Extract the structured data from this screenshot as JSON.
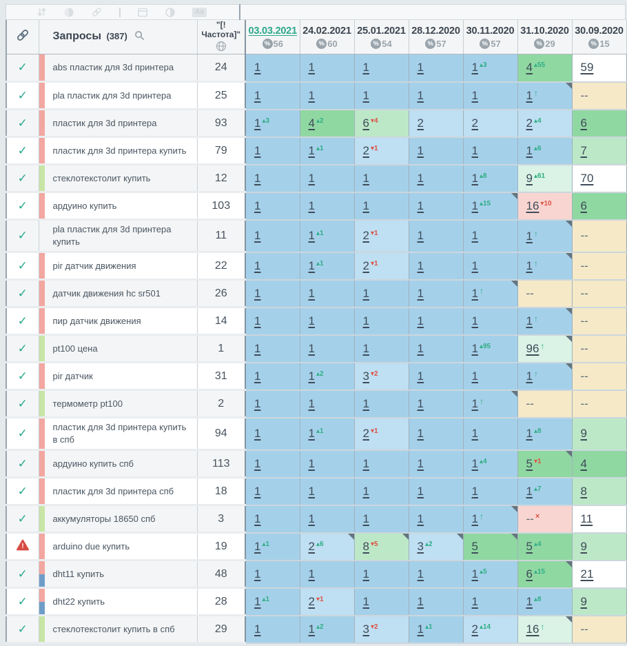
{
  "toolbar": {
    "icons": [
      "sort",
      "balance",
      "link",
      "divider",
      "card",
      "contrast",
      "text-style"
    ]
  },
  "header": {
    "queries_label": "Запросы",
    "queries_count": "(387)",
    "frequency_label": "\"[!Частота]\"",
    "dates": [
      {
        "label": "03.03.2021",
        "percent": "56",
        "active": true
      },
      {
        "label": "24.02.2021",
        "percent": "60"
      },
      {
        "label": "25.01.2021",
        "percent": "54"
      },
      {
        "label": "28.12.2020",
        "percent": "57"
      },
      {
        "label": "30.11.2020",
        "percent": "57"
      },
      {
        "label": "31.10.2020",
        "percent": "29"
      },
      {
        "label": "30.09.2020",
        "percent": "15"
      }
    ]
  },
  "colors": {
    "accent_teal": "#2aa98b",
    "up_green": "#2fae85",
    "down_red": "#dd5246",
    "pos1_blue": "#a5d0ea",
    "pos2_3_blue": "#bfdff2",
    "pos4_6_green": "#90d8a2",
    "pos7_10_green": "#bce8c7",
    "new_entry_green": "#daf3e6",
    "not_ranked_tan": "#f5e9c8",
    "dropped_pink": "#f9d5d1",
    "tag_red": "#f2a7a0",
    "tag_green": "#c8e5a5",
    "tag_blue": "#6f9dc9"
  },
  "rows": [
    {
      "status": "ok",
      "tags": [
        "red"
      ],
      "query": "abs пластик для 3d принтера",
      "frequency": "24",
      "cells": [
        {
          "v": "1"
        },
        {
          "v": "1"
        },
        {
          "v": "1"
        },
        {
          "v": "1"
        },
        {
          "v": "1",
          "dir": "up",
          "chg": "3"
        },
        {
          "v": "4",
          "bg": "green1",
          "dir": "up",
          "chg": "55"
        },
        {
          "v": "59",
          "bg": "white"
        }
      ]
    },
    {
      "status": "ok",
      "tags": [
        "red"
      ],
      "query": "pla пластик для 3d принтера",
      "frequency": "25",
      "cells": [
        {
          "v": "1"
        },
        {
          "v": "1"
        },
        {
          "v": "1"
        },
        {
          "v": "1"
        },
        {
          "v": "1"
        },
        {
          "v": "1",
          "dir": "new",
          "corner": true
        },
        {
          "v": "--",
          "bg": "tan"
        }
      ]
    },
    {
      "status": "ok",
      "tags": [
        "red"
      ],
      "query": "пластик для 3d принтера",
      "frequency": "93",
      "cells": [
        {
          "v": "1",
          "dir": "up",
          "chg": "3"
        },
        {
          "v": "4",
          "bg": "green1",
          "dir": "up",
          "chg": "2"
        },
        {
          "v": "6",
          "bg": "green2",
          "dir": "dn",
          "chg": "4"
        },
        {
          "v": "2",
          "bg": "blue2"
        },
        {
          "v": "2",
          "bg": "blue2"
        },
        {
          "v": "2",
          "bg": "blue2",
          "dir": "up",
          "chg": "4"
        },
        {
          "v": "6",
          "bg": "green1"
        }
      ]
    },
    {
      "status": "ok",
      "tags": [
        "red"
      ],
      "query": "пластик для 3d принтера купить",
      "frequency": "79",
      "cells": [
        {
          "v": "1"
        },
        {
          "v": "1",
          "dir": "up",
          "chg": "1"
        },
        {
          "v": "2",
          "bg": "blue2",
          "dir": "dn",
          "chg": "1"
        },
        {
          "v": "1"
        },
        {
          "v": "1"
        },
        {
          "v": "1",
          "dir": "up",
          "chg": "6"
        },
        {
          "v": "7",
          "bg": "green2"
        }
      ]
    },
    {
      "status": "ok",
      "tags": [
        "green"
      ],
      "query": "стеклотекстолит купить",
      "frequency": "12",
      "cells": [
        {
          "v": "1"
        },
        {
          "v": "1"
        },
        {
          "v": "1"
        },
        {
          "v": "1"
        },
        {
          "v": "1",
          "dir": "up",
          "chg": "8"
        },
        {
          "v": "9",
          "bg": "green3",
          "dir": "up",
          "chg": "61"
        },
        {
          "v": "70",
          "bg": "white"
        }
      ]
    },
    {
      "status": "ok",
      "tags": [
        "red"
      ],
      "query": "ардуино купить",
      "frequency": "103",
      "cells": [
        {
          "v": "1"
        },
        {
          "v": "1"
        },
        {
          "v": "1"
        },
        {
          "v": "1"
        },
        {
          "v": "1",
          "dir": "up",
          "chg": "15",
          "corner": true
        },
        {
          "v": "16",
          "bg": "pink",
          "dir": "dn",
          "chg": "10"
        },
        {
          "v": "6",
          "bg": "green1"
        }
      ]
    },
    {
      "status": "ok",
      "tags": [],
      "query": "pla пластик для 3d принтера купить",
      "frequency": "11",
      "cells": [
        {
          "v": "1"
        },
        {
          "v": "1",
          "dir": "up",
          "chg": "1"
        },
        {
          "v": "2",
          "bg": "blue2",
          "dir": "dn",
          "chg": "1"
        },
        {
          "v": "1"
        },
        {
          "v": "1"
        },
        {
          "v": "1",
          "dir": "new",
          "corner": true
        },
        {
          "v": "--",
          "bg": "tan"
        }
      ]
    },
    {
      "status": "ok",
      "tags": [
        "red"
      ],
      "query": "pir датчик движения",
      "frequency": "22",
      "cells": [
        {
          "v": "1"
        },
        {
          "v": "1",
          "dir": "up",
          "chg": "1"
        },
        {
          "v": "2",
          "bg": "blue2",
          "dir": "dn",
          "chg": "1"
        },
        {
          "v": "1"
        },
        {
          "v": "1"
        },
        {
          "v": "1",
          "dir": "new",
          "corner": true
        },
        {
          "v": "--",
          "bg": "tan"
        }
      ]
    },
    {
      "status": "ok",
      "tags": [
        "red"
      ],
      "query": "датчик движения hc sr501",
      "frequency": "26",
      "cells": [
        {
          "v": "1"
        },
        {
          "v": "1"
        },
        {
          "v": "1"
        },
        {
          "v": "1"
        },
        {
          "v": "1",
          "dir": "new",
          "corner": true
        },
        {
          "v": "--",
          "bg": "tan"
        },
        {
          "v": "--",
          "bg": "tan"
        }
      ]
    },
    {
      "status": "ok",
      "tags": [
        "red"
      ],
      "query": "пир датчик движения",
      "frequency": "14",
      "cells": [
        {
          "v": "1"
        },
        {
          "v": "1"
        },
        {
          "v": "1"
        },
        {
          "v": "1"
        },
        {
          "v": "1"
        },
        {
          "v": "1",
          "dir": "new",
          "corner": true
        },
        {
          "v": "--",
          "bg": "tan"
        }
      ]
    },
    {
      "status": "ok",
      "tags": [
        "green"
      ],
      "query": "pt100 цена",
      "frequency": "1",
      "cells": [
        {
          "v": "1"
        },
        {
          "v": "1"
        },
        {
          "v": "1"
        },
        {
          "v": "1"
        },
        {
          "v": "1",
          "dir": "up",
          "chg": "95"
        },
        {
          "v": "96",
          "bg": "green3",
          "dir": "new",
          "corner": true
        },
        {
          "v": "--",
          "bg": "tan"
        }
      ]
    },
    {
      "status": "ok",
      "tags": [
        "red"
      ],
      "query": "pir датчик",
      "frequency": "31",
      "cells": [
        {
          "v": "1"
        },
        {
          "v": "1",
          "dir": "up",
          "chg": "2"
        },
        {
          "v": "3",
          "bg": "blue2",
          "dir": "dn",
          "chg": "2"
        },
        {
          "v": "1"
        },
        {
          "v": "1"
        },
        {
          "v": "1",
          "dir": "new",
          "corner": true
        },
        {
          "v": "--",
          "bg": "tan"
        }
      ]
    },
    {
      "status": "ok",
      "tags": [
        "green"
      ],
      "query": "термометр pt100",
      "frequency": "2",
      "cells": [
        {
          "v": "1"
        },
        {
          "v": "1"
        },
        {
          "v": "1"
        },
        {
          "v": "1"
        },
        {
          "v": "1",
          "dir": "new",
          "corner": true
        },
        {
          "v": "--",
          "bg": "tan"
        },
        {
          "v": "--",
          "bg": "tan"
        }
      ]
    },
    {
      "status": "ok",
      "tags": [
        "red"
      ],
      "query": "пластик для 3d принтера купить в спб",
      "frequency": "94",
      "cells": [
        {
          "v": "1"
        },
        {
          "v": "1",
          "dir": "up",
          "chg": "1"
        },
        {
          "v": "2",
          "bg": "blue2",
          "dir": "dn",
          "chg": "1"
        },
        {
          "v": "1"
        },
        {
          "v": "1"
        },
        {
          "v": "1",
          "dir": "up",
          "chg": "8"
        },
        {
          "v": "9",
          "bg": "green2"
        }
      ]
    },
    {
      "status": "ok",
      "tags": [
        "red"
      ],
      "query": "ардуино купить спб",
      "frequency": "113",
      "cells": [
        {
          "v": "1"
        },
        {
          "v": "1"
        },
        {
          "v": "1"
        },
        {
          "v": "1"
        },
        {
          "v": "1",
          "dir": "up",
          "chg": "4"
        },
        {
          "v": "5",
          "bg": "green1",
          "dir": "dn",
          "chg": "1",
          "corner": true
        },
        {
          "v": "4",
          "bg": "green1"
        }
      ]
    },
    {
      "status": "ok",
      "tags": [
        "red"
      ],
      "query": "пластик для 3d принтера спб",
      "frequency": "18",
      "cells": [
        {
          "v": "1"
        },
        {
          "v": "1"
        },
        {
          "v": "1"
        },
        {
          "v": "1"
        },
        {
          "v": "1"
        },
        {
          "v": "1",
          "dir": "up",
          "chg": "7"
        },
        {
          "v": "8",
          "bg": "green2"
        }
      ]
    },
    {
      "status": "ok",
      "tags": [
        "green"
      ],
      "query": "аккумуляторы 18650 спб",
      "frequency": "3",
      "cells": [
        {
          "v": "1"
        },
        {
          "v": "1"
        },
        {
          "v": "1"
        },
        {
          "v": "1"
        },
        {
          "v": "1",
          "dir": "new",
          "corner": true
        },
        {
          "v": "--",
          "bg": "pink",
          "dir": "lost"
        },
        {
          "v": "11",
          "bg": "white"
        }
      ]
    },
    {
      "status": "warn",
      "tags": [
        "red"
      ],
      "query": "arduino due купить",
      "frequency": "19",
      "cells": [
        {
          "v": "1",
          "dir": "up",
          "chg": "1"
        },
        {
          "v": "2",
          "bg": "blue2",
          "dir": "up",
          "chg": "6",
          "corner": true
        },
        {
          "v": "8",
          "bg": "green2",
          "dir": "dn",
          "chg": "5",
          "corner": true
        },
        {
          "v": "3",
          "bg": "blue2",
          "dir": "up",
          "chg": "2",
          "corner": true
        },
        {
          "v": "5",
          "bg": "green1",
          "corner": true
        },
        {
          "v": "5",
          "bg": "green1",
          "dir": "up",
          "chg": "4"
        },
        {
          "v": "9",
          "bg": "green2"
        }
      ]
    },
    {
      "status": "ok",
      "tags": [
        "red",
        "blue"
      ],
      "query": "dht11 купить",
      "frequency": "48",
      "cells": [
        {
          "v": "1"
        },
        {
          "v": "1"
        },
        {
          "v": "1"
        },
        {
          "v": "1"
        },
        {
          "v": "1",
          "dir": "up",
          "chg": "5"
        },
        {
          "v": "6",
          "bg": "green1",
          "dir": "up",
          "chg": "15",
          "corner": true
        },
        {
          "v": "21",
          "bg": "white"
        }
      ]
    },
    {
      "status": "ok",
      "tags": [
        "red",
        "blue"
      ],
      "query": "dht22 купить",
      "frequency": "28",
      "cells": [
        {
          "v": "1",
          "dir": "up",
          "chg": "1"
        },
        {
          "v": "2",
          "bg": "blue2",
          "dir": "dn",
          "chg": "1"
        },
        {
          "v": "1"
        },
        {
          "v": "1"
        },
        {
          "v": "1"
        },
        {
          "v": "1",
          "dir": "up",
          "chg": "8"
        },
        {
          "v": "9",
          "bg": "green2"
        }
      ]
    },
    {
      "status": "ok",
      "tags": [
        "green"
      ],
      "query": "стеклотекстолит купить в спб",
      "frequency": "29",
      "cells": [
        {
          "v": "1"
        },
        {
          "v": "1",
          "dir": "up",
          "chg": "2"
        },
        {
          "v": "3",
          "bg": "blue2",
          "dir": "dn",
          "chg": "2"
        },
        {
          "v": "1",
          "dir": "up",
          "chg": "1"
        },
        {
          "v": "2",
          "bg": "blue2",
          "dir": "up",
          "chg": "14"
        },
        {
          "v": "16",
          "bg": "green3",
          "dir": "new",
          "corner": true
        },
        {
          "v": "--",
          "bg": "tan"
        }
      ]
    }
  ]
}
